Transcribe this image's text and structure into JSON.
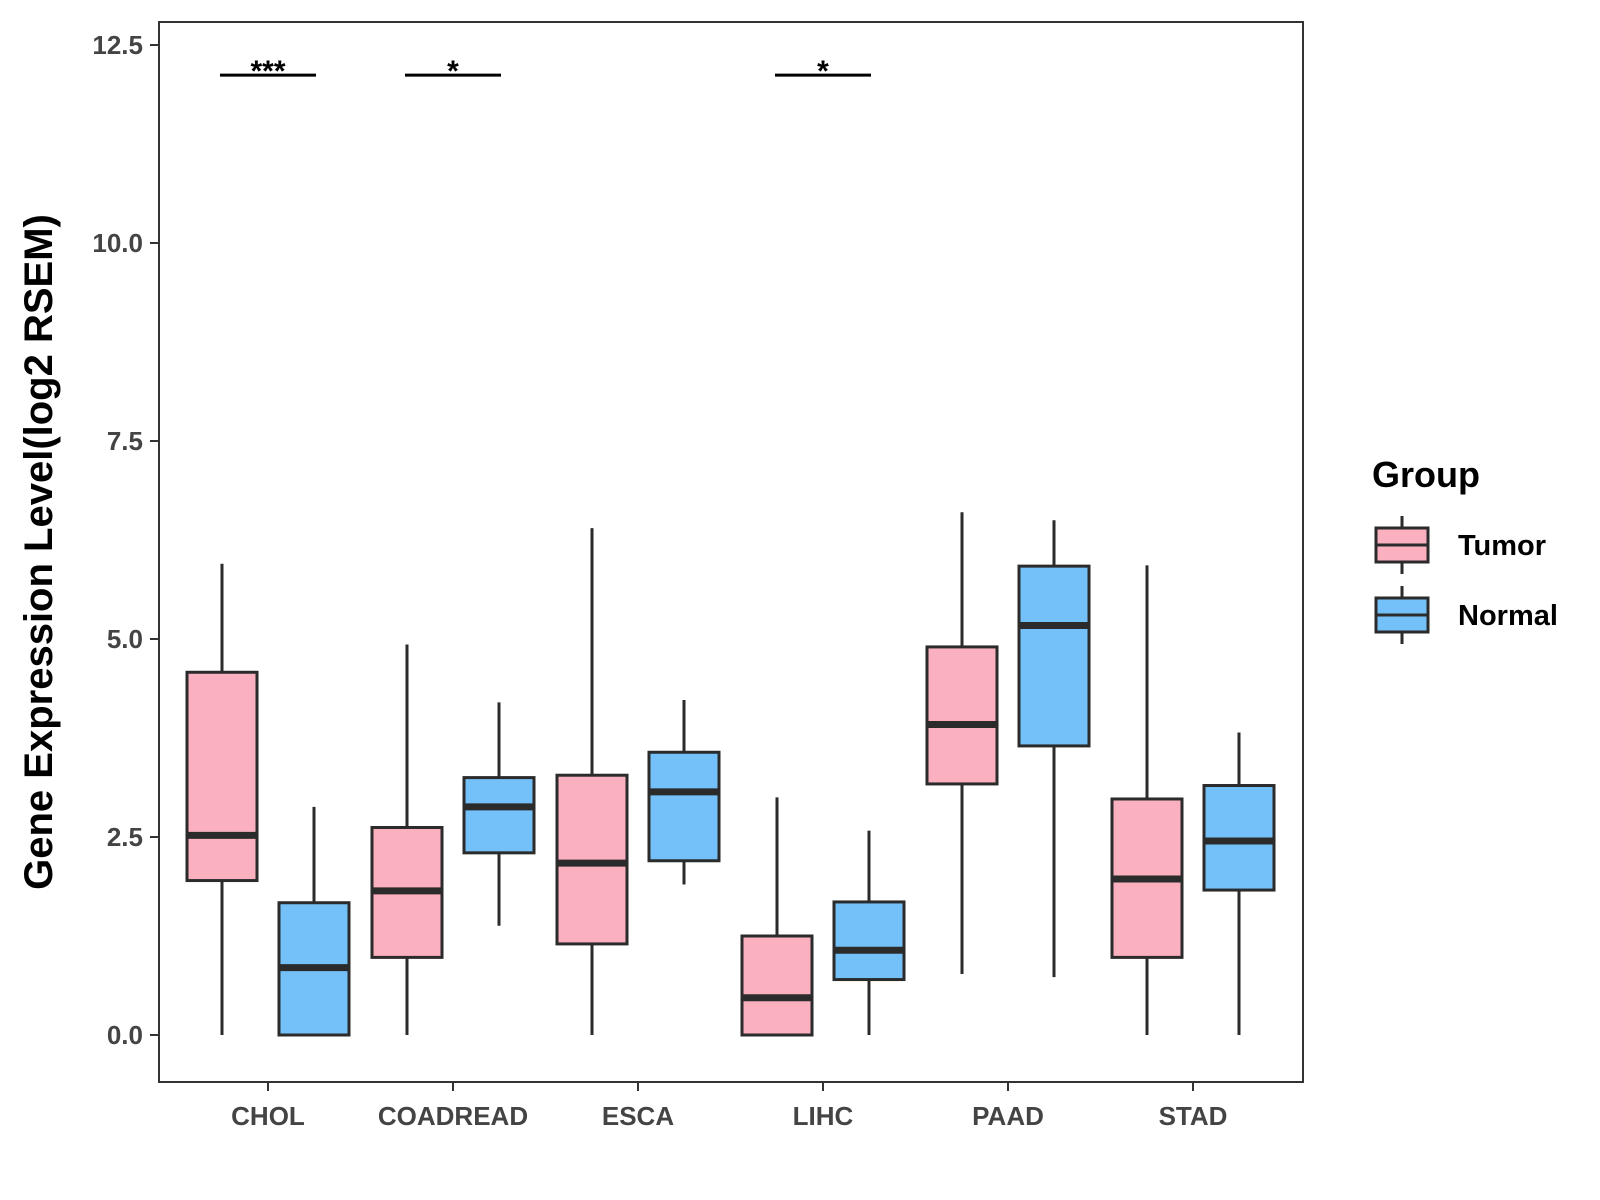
{
  "chart_data": {
    "type": "boxplot",
    "title": "",
    "xlabel": "",
    "ylabel": "Gene Expression Level(log2 RSEM)",
    "ylim": [
      -0.6,
      12.8
    ],
    "yticks": [
      0.0,
      2.5,
      5.0,
      7.5,
      10.0,
      12.5
    ],
    "ytick_labels": [
      "0.0",
      "2.5",
      "5.0",
      "7.5",
      "10.0",
      "12.5"
    ],
    "categories": [
      "CHOL",
      "COADREAD",
      "ESCA",
      "LIHC",
      "PAAD",
      "STAD"
    ],
    "legend": {
      "title": "Group",
      "position": "right",
      "entries": [
        "Tumor",
        "Normal"
      ]
    },
    "series": [
      {
        "name": "Tumor",
        "color": "#FBB0C0",
        "boxes": [
          {
            "whisker_low": 0.0,
            "q1": 1.95,
            "median": 2.52,
            "q3": 4.58,
            "whisker_high": 5.95
          },
          {
            "whisker_low": 0.0,
            "q1": 0.98,
            "median": 1.82,
            "q3": 2.62,
            "whisker_high": 4.93
          },
          {
            "whisker_low": 0.0,
            "q1": 1.15,
            "median": 2.17,
            "q3": 3.28,
            "whisker_high": 6.4
          },
          {
            "whisker_low": 0.0,
            "q1": 0.0,
            "median": 0.47,
            "q3": 1.25,
            "whisker_high": 3.0
          },
          {
            "whisker_low": 0.77,
            "q1": 3.17,
            "median": 3.92,
            "q3": 4.9,
            "whisker_high": 6.6
          },
          {
            "whisker_low": 0.0,
            "q1": 0.98,
            "median": 1.97,
            "q3": 2.98,
            "whisker_high": 5.93
          }
        ]
      },
      {
        "name": "Normal",
        "color": "#74C0F8",
        "boxes": [
          {
            "whisker_low": 0.0,
            "q1": 0.0,
            "median": 0.85,
            "q3": 1.67,
            "whisker_high": 2.88
          },
          {
            "whisker_low": 1.38,
            "q1": 2.3,
            "median": 2.88,
            "q3": 3.25,
            "whisker_high": 4.2
          },
          {
            "whisker_low": 1.9,
            "q1": 2.2,
            "median": 3.07,
            "q3": 3.57,
            "whisker_high": 4.23
          },
          {
            "whisker_low": 0.0,
            "q1": 0.7,
            "median": 1.07,
            "q3": 1.68,
            "whisker_high": 2.58
          },
          {
            "whisker_low": 0.73,
            "q1": 3.65,
            "median": 5.17,
            "q3": 5.92,
            "whisker_high": 6.5
          },
          {
            "whisker_low": 0.0,
            "q1": 1.83,
            "median": 2.45,
            "q3": 3.15,
            "whisker_high": 3.82
          }
        ]
      }
    ],
    "annotations": [
      {
        "category": "CHOL",
        "label": "***",
        "y": 12.12
      },
      {
        "category": "COADREAD",
        "label": "*",
        "y": 12.12
      },
      {
        "category": "LIHC",
        "label": "*",
        "y": 12.12
      }
    ]
  }
}
